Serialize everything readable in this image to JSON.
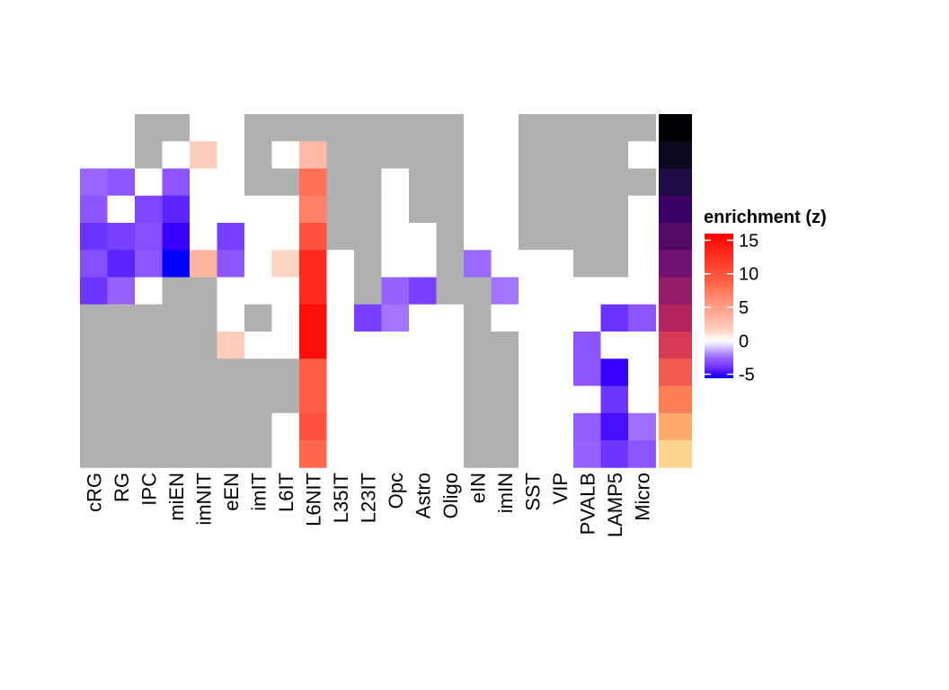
{
  "chart_data": {
    "type": "heatmap",
    "title": "",
    "xlabel": "",
    "ylabel": "",
    "columns": [
      "cRG",
      "RG",
      "IPC",
      "miEN",
      "imNIT",
      "eEN",
      "imIT",
      "L6IT",
      "L6NIT",
      "L35IT",
      "L23IT",
      "Opc",
      "Astro",
      "Oligo",
      "eIN",
      "imIN",
      "SST",
      "VIP",
      "PVALB",
      "LAMP5",
      "Micro"
    ],
    "values": [
      [
        0,
        0,
        null,
        null,
        0,
        0,
        null,
        null,
        null,
        null,
        null,
        null,
        null,
        null,
        0,
        0,
        null,
        null,
        null,
        null,
        null
      ],
      [
        0,
        0,
        null,
        0,
        2,
        0,
        null,
        0,
        3,
        null,
        null,
        null,
        null,
        null,
        0,
        0,
        null,
        null,
        null,
        null,
        0
      ],
      [
        -2.6,
        -3,
        0,
        -3,
        0,
        0,
        null,
        null,
        8,
        null,
        null,
        0,
        null,
        null,
        0,
        0,
        null,
        null,
        null,
        null,
        null
      ],
      [
        -3,
        0,
        -3.4,
        -4.3,
        0,
        0,
        0,
        0,
        7,
        null,
        null,
        0,
        null,
        null,
        0,
        0,
        null,
        null,
        null,
        null,
        0
      ],
      [
        -4,
        -3.6,
        -3.2,
        -5,
        0,
        -3.6,
        0,
        0,
        10,
        null,
        null,
        0,
        0,
        null,
        0,
        0,
        null,
        null,
        null,
        null,
        0
      ],
      [
        -3.2,
        -4.3,
        -3,
        -5.6,
        3.5,
        -3,
        0,
        1.5,
        13,
        0,
        null,
        0,
        0,
        null,
        -2.5,
        0,
        0,
        0,
        null,
        null,
        0
      ],
      [
        -3.9,
        -2.7,
        0,
        null,
        null,
        0,
        0,
        0,
        13,
        0,
        null,
        -2.7,
        -3.6,
        null,
        null,
        -2.2,
        0,
        0,
        0,
        0,
        0
      ],
      [
        null,
        null,
        null,
        null,
        null,
        0,
        null,
        0,
        15,
        0,
        -3.6,
        -2.2,
        0,
        0,
        null,
        0,
        0,
        0,
        0,
        -4,
        -3
      ],
      [
        null,
        null,
        null,
        null,
        null,
        2,
        0,
        0,
        15,
        0,
        0,
        0,
        0,
        0,
        null,
        null,
        0,
        0,
        -3,
        0,
        0
      ],
      [
        null,
        null,
        null,
        null,
        null,
        null,
        null,
        null,
        9,
        0,
        0,
        0,
        0,
        0,
        null,
        null,
        0,
        0,
        -3,
        -5,
        0
      ],
      [
        null,
        null,
        null,
        null,
        null,
        null,
        null,
        null,
        9,
        0,
        0,
        0,
        0,
        0,
        null,
        null,
        0,
        0,
        0,
        -3.9,
        0
      ],
      [
        null,
        null,
        null,
        null,
        null,
        null,
        null,
        0,
        10,
        0,
        0,
        0,
        0,
        0,
        null,
        null,
        0,
        0,
        -2.8,
        -4.7,
        -2.3
      ],
      [
        null,
        null,
        null,
        null,
        null,
        null,
        null,
        0,
        8.5,
        0,
        0,
        0,
        0,
        0,
        null,
        null,
        0,
        0,
        -2.7,
        -3.9,
        -3
      ]
    ],
    "na_color": "#b0b0b0",
    "row_annotation_colors": [
      "#000004",
      "#0d0a1f",
      "#1e0a45",
      "#3a0066",
      "#520a68",
      "#721270",
      "#951c6a",
      "#b52260",
      "#d83a55",
      "#f25a4f",
      "#fa7d55",
      "#fca96c",
      "#fdd28c"
    ],
    "legend": {
      "title": "enrichment (z)",
      "ticks": [
        15,
        10,
        5,
        0,
        -5
      ],
      "tick_labels": [
        "15",
        "10",
        "5",
        "0",
        "-5"
      ],
      "range": [
        -5.6,
        16
      ],
      "placement": "right"
    },
    "color_scale": [
      [
        -5.6,
        "#0000ff"
      ],
      [
        -5,
        "#3a00ff"
      ],
      [
        -4,
        "#6a33ff"
      ],
      [
        -3,
        "#8c55ff"
      ],
      [
        -2.2,
        "#a375ff"
      ],
      [
        -1,
        "#d6c8ff"
      ],
      [
        0,
        "#ffffff"
      ],
      [
        1.5,
        "#fdd4c4"
      ],
      [
        3,
        "#ffbba8"
      ],
      [
        7,
        "#ff8066"
      ],
      [
        9,
        "#ff5e44"
      ],
      [
        13,
        "#ff2a1f"
      ],
      [
        16,
        "#ff0000"
      ]
    ]
  }
}
